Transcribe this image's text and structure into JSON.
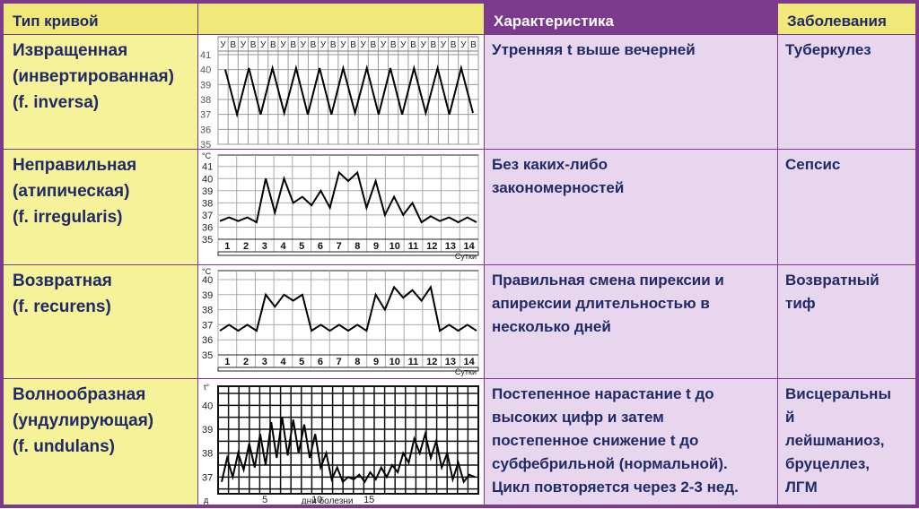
{
  "headers": {
    "curve_type": "Тип кривой",
    "chart": "",
    "characteristic": "Характеристика",
    "diseases": "Заболевания"
  },
  "rows": [
    {
      "name_lines": [
        "Извращенная",
        "(инвертированная)",
        "(f. inversa)"
      ],
      "characteristic_lines": [
        "Утренняя t выше вечерней"
      ],
      "disease_lines": [
        "Туберкулез"
      ]
    },
    {
      "name_lines": [
        "Неправильная",
        "(атипическая)",
        "(f. irregularis)"
      ],
      "characteristic_lines": [
        "Без каких-либо",
        "закономерностей"
      ],
      "disease_lines": [
        "Сепсис"
      ]
    },
    {
      "name_lines": [
        "Возвратная",
        "(f. recurens)"
      ],
      "characteristic_lines": [
        "Правильная смена пирексии и",
        "апирексии длительностью в",
        "несколько дней"
      ],
      "disease_lines": [
        "Возвратный",
        "тиф"
      ]
    },
    {
      "name_lines": [
        "Волнообразная",
        "(ундулирующая)",
        "(f. undulans)"
      ],
      "characteristic_lines": [
        "Постепенное нарастание t до",
        "высоких цифр и затем",
        "постепенное снижение t до",
        "субфебрильной (нормальной).",
        "Цикл повторяется через 2-3 нед."
      ],
      "disease_lines": [
        "Висцеральны",
        "й",
        "лейшманиоз,",
        "бруцеллез,",
        "ЛГМ"
      ]
    }
  ],
  "chart_data": [
    {
      "type": "line",
      "top_labels": [
        "У",
        "В",
        "У",
        "В",
        "У",
        "В",
        "У",
        "В",
        "У",
        "В",
        "У",
        "В",
        "У",
        "В",
        "У",
        "В",
        "У",
        "В",
        "У",
        "В",
        "У",
        "В",
        "У",
        "В",
        "У",
        "В"
      ],
      "y_ticks": [
        41,
        40,
        39,
        38,
        37,
        36,
        35
      ],
      "ylim": [
        35,
        41
      ],
      "values": [
        40.0,
        37.0,
        40.1,
        37.0,
        40.1,
        37.1,
        40.1,
        37.0,
        40.1,
        37.0,
        40.1,
        37.1,
        40.1,
        37.0,
        40.1,
        37.0,
        40.1,
        37.1,
        40.1,
        37.0,
        40.1,
        37.1
      ],
      "grid": true
    },
    {
      "type": "line",
      "unit": "°С",
      "y_ticks": [
        41,
        40,
        39,
        38,
        37,
        36,
        35
      ],
      "ylim": [
        35,
        41.2
      ],
      "x_labels": [
        "1",
        "2",
        "3",
        "4",
        "5",
        "6",
        "7",
        "8",
        "9",
        "10",
        "11",
        "12",
        "13",
        "14"
      ],
      "xlabel": "Сутки",
      "values": [
        36.5,
        36.8,
        36.5,
        36.8,
        36.4,
        40.0,
        37.2,
        40.0,
        38.0,
        38.5,
        37.8,
        39.0,
        37.6,
        40.5,
        39.8,
        40.5,
        37.6,
        39.8,
        37.0,
        38.5,
        37.0,
        38.0,
        36.4,
        36.9,
        36.5,
        36.8,
        36.4,
        36.8,
        36.4
      ],
      "grid": true
    },
    {
      "type": "line",
      "unit": "°С",
      "y_ticks": [
        40,
        39,
        38,
        37,
        36,
        35
      ],
      "ylim": [
        35,
        40
      ],
      "x_labels": [
        "1",
        "2",
        "3",
        "4",
        "5",
        "6",
        "7",
        "8",
        "9",
        "10",
        "11",
        "12",
        "13",
        "14"
      ],
      "xlabel": "Сутки",
      "values": [
        36.6,
        37.0,
        36.6,
        37.0,
        36.6,
        39.0,
        38.2,
        39.0,
        38.6,
        39.0,
        36.6,
        37.0,
        36.6,
        37.0,
        36.6,
        37.0,
        36.6,
        39.0,
        38.0,
        39.5,
        38.8,
        39.3,
        38.6,
        39.5,
        36.6,
        37.0,
        36.6,
        37.0,
        36.6
      ],
      "grid": true
    },
    {
      "type": "line",
      "unit": "t°",
      "y_ticks": [
        40,
        39,
        38,
        37
      ],
      "ylim": [
        36.3,
        40.8
      ],
      "x_ticks": [
        "5",
        "10",
        "15"
      ],
      "x_tick_days": [
        5,
        10,
        15
      ],
      "day_prefix": "д",
      "xlabel": "дни болезни",
      "values": [
        36.8,
        37.8,
        37.0,
        38.0,
        37.3,
        38.4,
        37.4,
        38.8,
        37.5,
        39.3,
        37.8,
        39.5,
        37.9,
        39.4,
        38.0,
        39.2,
        37.8,
        38.8,
        37.4,
        38.0,
        36.9,
        37.4,
        36.8,
        37.0,
        36.9,
        37.1,
        36.8,
        37.2,
        36.9,
        37.4,
        37.0,
        37.5,
        37.2,
        38.0,
        37.6,
        38.6,
        38.0,
        38.8,
        37.8,
        38.5,
        37.4,
        38.0,
        36.9,
        37.6,
        36.8,
        37.1,
        37.0
      ],
      "grid": true
    }
  ]
}
